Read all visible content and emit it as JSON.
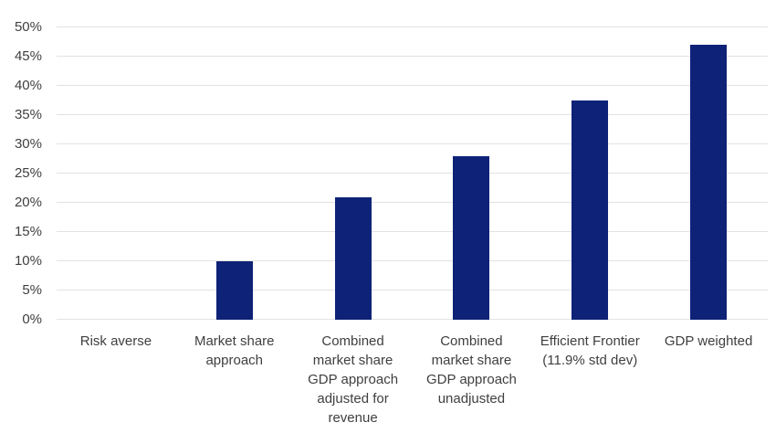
{
  "chart_data": {
    "type": "bar",
    "title": "",
    "xlabel": "",
    "ylabel": "",
    "categories": [
      "Risk averse",
      "Market share approach",
      "Combined market share GDP approach adjusted for revenue",
      "Combined market share GDP approach unadjusted",
      "Efficient Frontier (11.9% std dev)",
      "GDP weighted"
    ],
    "category_display": [
      "Risk averse",
      "Market share\napproach",
      "Combined\nmarket share\nGDP approach\nadjusted for\nrevenue",
      "Combined\nmarket share\nGDP approach\nunadjusted",
      "Efficient Frontier\n(11.9% std dev)",
      "GDP weighted"
    ],
    "values": [
      0,
      10,
      21,
      28,
      37.5,
      47
    ],
    "unit": "%",
    "ylim": [
      0,
      50
    ],
    "ytick_step": 5,
    "ytick_labels": [
      "0%",
      "5%",
      "10%",
      "15%",
      "20%",
      "25%",
      "30%",
      "35%",
      "40%",
      "45%",
      "50%"
    ],
    "grid": true,
    "legend": false,
    "colors": {
      "bar": "#0e2277",
      "gridline": "#e2e2e2",
      "axis_text": "#3f3f3f",
      "background": "#ffffff"
    }
  }
}
